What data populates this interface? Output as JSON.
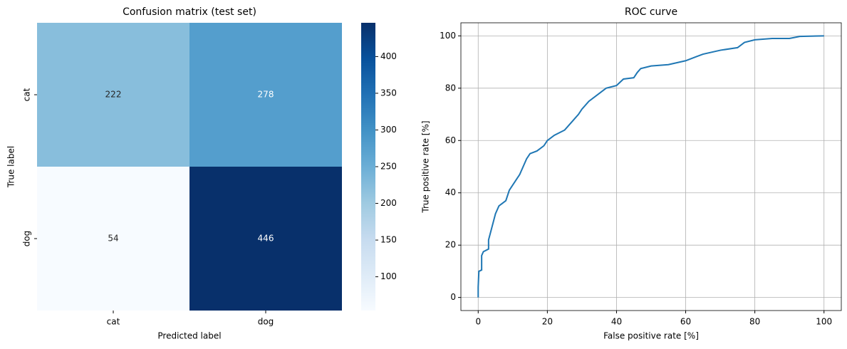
{
  "chart_data": [
    {
      "type": "heatmap",
      "title": "Confusion matrix (test set)",
      "x_label": "Predicted label",
      "y_label": "True label",
      "x_categories": [
        "cat",
        "dog"
      ],
      "y_categories": [
        "cat",
        "dog"
      ],
      "values": [
        [
          222,
          278
        ],
        [
          54,
          446
        ]
      ],
      "clim": [
        54,
        446
      ],
      "colorbar_ticks": [
        100,
        150,
        200,
        250,
        300,
        350,
        400
      ],
      "colorscale": [
        "#f7fbff",
        "#deebf7",
        "#c6dbef",
        "#9ecae1",
        "#6baed6",
        "#4292c6",
        "#2171b5",
        "#08519c",
        "#08306b"
      ]
    },
    {
      "type": "line",
      "title": "ROC curve",
      "x_label": "False positive rate [%]",
      "y_label": "True positive rate [%]",
      "x": [
        0,
        0,
        0.2,
        1,
        1,
        1.5,
        3,
        3,
        4,
        5,
        6,
        7,
        8,
        9,
        10,
        11,
        12,
        13,
        14,
        15,
        17,
        19,
        20,
        22,
        25,
        27,
        29,
        30,
        32,
        35,
        37,
        40,
        42,
        45,
        46,
        47,
        50,
        55,
        60,
        63,
        65,
        70,
        75,
        77,
        80,
        85,
        90,
        93,
        100
      ],
      "values": [
        0,
        4,
        10,
        10.5,
        16,
        17.5,
        18.5,
        22,
        27,
        32,
        35,
        36,
        37,
        41,
        43,
        45,
        47,
        50,
        53,
        55,
        56,
        58,
        60,
        62,
        64,
        67,
        70,
        72,
        75,
        78,
        80,
        81,
        83.5,
        84,
        86,
        87.5,
        88.5,
        89,
        90.5,
        92,
        93,
        94.5,
        95.5,
        97.5,
        98.5,
        99,
        99,
        99.8,
        100
      ],
      "color": "#1f77b4",
      "xlim": [
        -5,
        105
      ],
      "ylim": [
        -5,
        105
      ],
      "xticks": [
        0,
        20,
        40,
        60,
        80,
        100
      ],
      "yticks": [
        0,
        20,
        40,
        60,
        80,
        100
      ],
      "grid": true
    }
  ]
}
